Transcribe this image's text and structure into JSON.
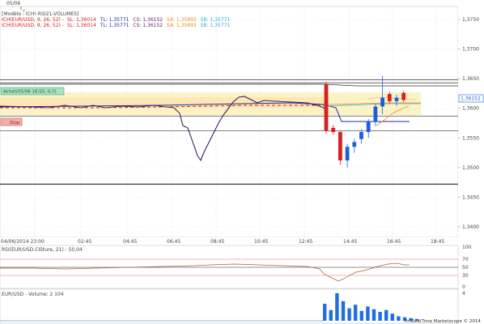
{
  "header": {
    "date_marker": "05/06",
    "model_line": "[Modèle : ICH!-RSI21-VOLUMES]",
    "ich_line1_prefix": "ICH(EUR/USD, 9, 26, 52) -",
    "ich_line1_items": [
      {
        "text": "SL: 1,36014",
        "color": "#d02020"
      },
      {
        "text": "TL: 1,35771",
        "color": "#1d2e9c"
      },
      {
        "text": "CS: 1,36152",
        "color": "#6a1f6a"
      },
      {
        "text": "SA: 1,35893",
        "color": "#f08a20"
      },
      {
        "text": "SB: 1,35771",
        "color": "#2aa9d8"
      }
    ],
    "ich_line2_prefix": "ICH(EUR/USD, 9, 26, 52) -",
    "ich_line2_items": [
      {
        "text": "SL: 1,36014",
        "color": "#d02020"
      },
      {
        "text": "TL: 1,35771",
        "color": "#1d2e9c"
      },
      {
        "text": "CS: 1,36152",
        "color": "#6a1f6a"
      },
      {
        "text": "SA: 1,35893",
        "color": "#f08a20"
      },
      {
        "text": "SB: 1,35771",
        "color": "#2aa9d8"
      }
    ]
  },
  "tags": {
    "buy_tag": "Achat(05/06 16:55, 0,7)",
    "stop_tag": "Stop",
    "last_price": "1,36152"
  },
  "rsi_panel": {
    "label": "RSI(EUR/USD,Clôture, 21) : 50,04",
    "axis": [
      "100",
      "70",
      "50",
      "30",
      "0"
    ]
  },
  "volume_panel": {
    "label": "EUR/USD - Volume: 2 104",
    "axis": "4"
  },
  "copyright": "ProRealTime Marketscope © 2014",
  "colors": {
    "up": "#1b5fdb",
    "down": "#d82020",
    "cloud": "#fbf3c4",
    "kijun": "#1d2e9c",
    "chikou": "#3a1f5a",
    "tenkan": "#d02020",
    "senkou_a": "#f08a20",
    "senkou_b": "#2aa9d8",
    "volume": "#1f6fe0",
    "rsi": "#b0602a"
  },
  "chart_data": {
    "type": "candlestick",
    "y_axis_ticks": [
      "1,3750",
      "1,3700",
      "1,3650",
      "1,3600",
      "1,3550",
      "1,3500",
      "1,3450",
      "1,3400"
    ],
    "ylim": [
      1.338,
      1.376
    ],
    "x_axis_ticks": [
      "04/06/2014 23:00",
      "02:45",
      "04:45",
      "06:45",
      "08:45",
      "10:45",
      "12:45",
      "14:45",
      "16:45",
      "18:45"
    ],
    "horizontal_levels": [
      1.3648,
      1.3643,
      1.3587,
      1.3562,
      1.3472
    ],
    "candles": [
      {
        "x": "12:45",
        "o": 1.364,
        "h": 1.3645,
        "l": 1.3557,
        "c": 1.3562
      },
      {
        "x": "13:05",
        "o": 1.3567,
        "h": 1.3572,
        "l": 1.3555,
        "c": 1.356
      },
      {
        "x": "13:25",
        "o": 1.356,
        "h": 1.3562,
        "l": 1.3505,
        "c": 1.3512
      },
      {
        "x": "13:45",
        "o": 1.3512,
        "h": 1.354,
        "l": 1.35,
        "c": 1.3535
      },
      {
        "x": "14:05",
        "o": 1.3535,
        "h": 1.3548,
        "l": 1.3525,
        "c": 1.3543
      },
      {
        "x": "14:25",
        "o": 1.3548,
        "h": 1.3565,
        "l": 1.354,
        "c": 1.356
      },
      {
        "x": "14:45",
        "o": 1.356,
        "h": 1.3582,
        "l": 1.355,
        "c": 1.3578
      },
      {
        "x": "15:05",
        "o": 1.3578,
        "h": 1.3608,
        "l": 1.357,
        "c": 1.3603
      },
      {
        "x": "15:25",
        "o": 1.3603,
        "h": 1.3655,
        "l": 1.359,
        "c": 1.3618
      },
      {
        "x": "15:45",
        "o": 1.3624,
        "h": 1.3628,
        "l": 1.3608,
        "c": 1.3612
      },
      {
        "x": "16:05",
        "o": 1.3612,
        "h": 1.3623,
        "l": 1.3604,
        "c": 1.3618
      },
      {
        "x": "16:25",
        "o": 1.3626,
        "h": 1.363,
        "l": 1.361,
        "c": 1.3614
      }
    ],
    "volumes": [
      {
        "x": "12:55",
        "v": 1.9
      },
      {
        "x": "13:10",
        "v": 1.2
      },
      {
        "x": "13:25",
        "v": 3.1
      },
      {
        "x": "13:40",
        "v": 2.2
      },
      {
        "x": "13:55",
        "v": 1.4
      },
      {
        "x": "14:10",
        "v": 1.8
      },
      {
        "x": "14:25",
        "v": 1.1
      },
      {
        "x": "14:40",
        "v": 1.6
      },
      {
        "x": "14:55",
        "v": 1.3
      },
      {
        "x": "15:10",
        "v": 1.0
      },
      {
        "x": "15:25",
        "v": 1.2
      },
      {
        "x": "15:40",
        "v": 0.8
      },
      {
        "x": "15:55",
        "v": 0.5
      },
      {
        "x": "16:10",
        "v": 0.4
      },
      {
        "x": "16:25",
        "v": 0.3
      },
      {
        "x": "16:40",
        "v": 0.2
      }
    ]
  }
}
